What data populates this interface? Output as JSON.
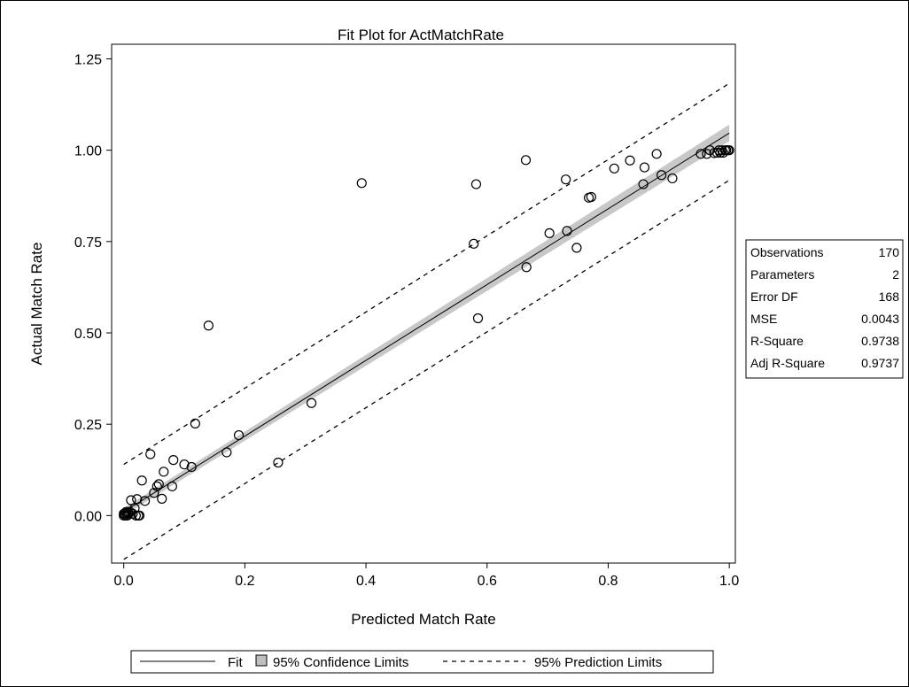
{
  "chart_data": {
    "type": "scatter",
    "title": "Fit Plot for ActMatchRate",
    "xlabel": "Predicted Match Rate",
    "ylabel": "Actual Match Rate",
    "xlim": [
      -0.02,
      1.01
    ],
    "ylim": [
      -0.13,
      1.29
    ],
    "x_ticks": [
      "0.0",
      "0.2",
      "0.4",
      "0.6",
      "0.8",
      "1.0"
    ],
    "y_ticks": [
      "0.00",
      "0.25",
      "0.50",
      "0.75",
      "1.00",
      "1.25"
    ],
    "grid": false,
    "legend_position": "bottom",
    "legend": {
      "fit": "Fit",
      "confidence": "95% Confidence Limits",
      "prediction": "95% Prediction Limits"
    },
    "fit_line": {
      "x": [
        0.0,
        1.0
      ],
      "y": [
        0.01,
        1.047
      ]
    },
    "confidence_band": {
      "x": [
        0.0,
        1.0
      ],
      "lower": [
        0.0,
        1.025
      ],
      "upper": [
        0.02,
        1.07
      ]
    },
    "prediction_limits": {
      "x": [
        0.0,
        1.0
      ],
      "upper": [
        0.14,
        1.183
      ],
      "lower": [
        -0.12,
        0.918
      ]
    },
    "points": {
      "x": [
        0.0,
        0.002,
        0.004,
        0.006,
        0.008,
        0.01,
        0.003,
        0.005,
        0.007,
        0.0,
        0.012,
        0.015,
        0.018,
        0.02,
        0.022,
        0.024,
        0.026,
        0.03,
        0.035,
        0.044,
        0.05,
        0.055,
        0.058,
        0.063,
        0.066,
        0.08,
        0.082,
        0.1,
        0.112,
        0.118,
        0.14,
        0.17,
        0.19,
        0.255,
        0.31,
        0.393,
        0.578,
        0.582,
        0.585,
        0.664,
        0.665,
        0.703,
        0.73,
        0.732,
        0.748,
        0.768,
        0.772,
        0.81,
        0.836,
        0.858,
        0.86,
        0.88,
        0.888,
        0.906,
        0.953,
        0.963,
        0.968,
        0.975,
        0.98,
        0.983,
        0.985,
        0.988,
        0.99,
        0.993,
        0.995,
        0.998,
        1.0
      ],
      "y": [
        0.0,
        0.005,
        0.01,
        0.0,
        0.005,
        0.01,
        0.0,
        0.005,
        0.01,
        0.005,
        0.042,
        0.005,
        0.02,
        0.0,
        0.045,
        0.0,
        0.0,
        0.096,
        0.04,
        0.168,
        0.062,
        0.08,
        0.086,
        0.046,
        0.12,
        0.08,
        0.152,
        0.14,
        0.133,
        0.252,
        0.52,
        0.173,
        0.22,
        0.145,
        0.308,
        0.91,
        0.744,
        0.907,
        0.54,
        0.973,
        0.68,
        0.773,
        0.92,
        0.779,
        0.733,
        0.87,
        0.872,
        0.95,
        0.972,
        0.907,
        0.953,
        0.99,
        0.932,
        0.923,
        0.99,
        0.99,
        1.0,
        0.992,
        0.993,
        1.0,
        0.993,
        1.0,
        0.993,
        1.0,
        1.0,
        1.0,
        1.0
      ]
    },
    "stats": [
      {
        "label": "Observations",
        "value": "170"
      },
      {
        "label": "Parameters",
        "value": "2"
      },
      {
        "label": "Error DF",
        "value": "168"
      },
      {
        "label": "MSE",
        "value": "0.0043"
      },
      {
        "label": "R-Square",
        "value": "0.9738"
      },
      {
        "label": "Adj R-Square",
        "value": "0.9737"
      }
    ]
  }
}
